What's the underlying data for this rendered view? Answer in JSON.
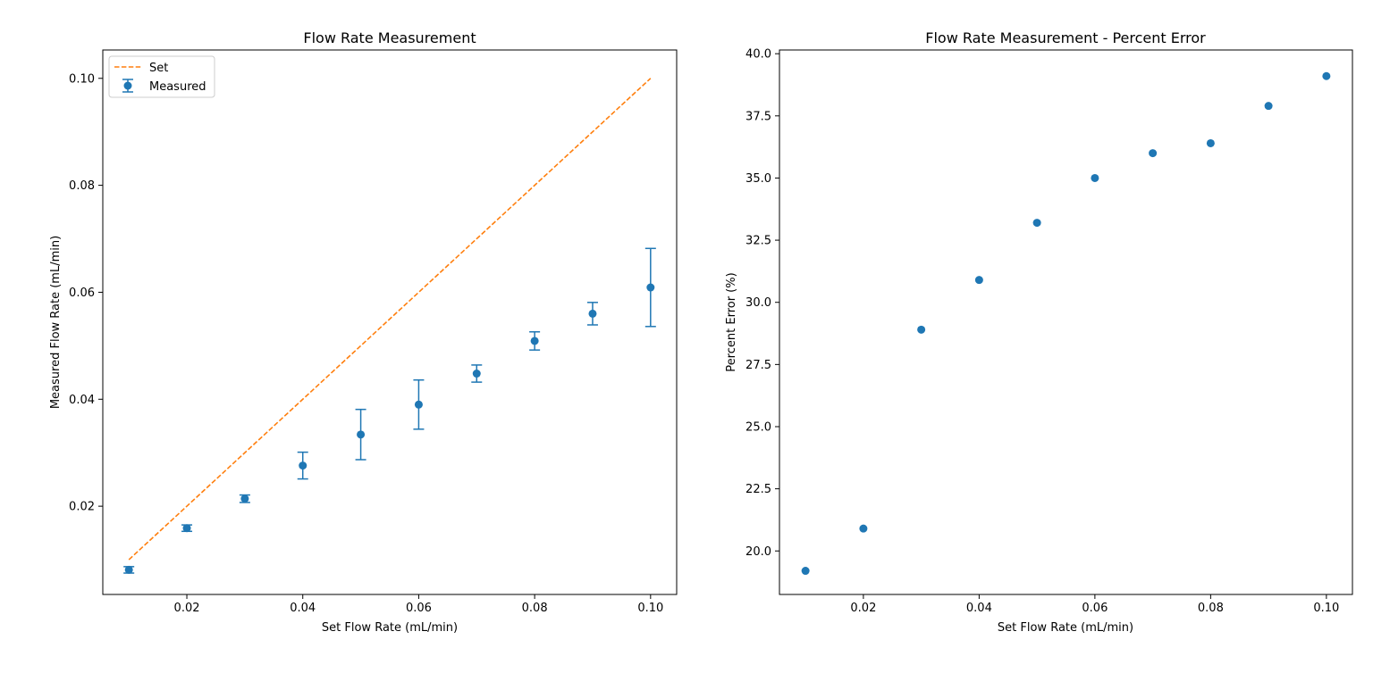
{
  "colors": {
    "measured": "#1f77b4",
    "set": "#ff7f0e"
  },
  "chart_data": [
    {
      "type": "scatter",
      "title": "Flow Rate Measurement",
      "xlabel": "Set Flow Rate (mL/min)",
      "ylabel": "Measured Flow Rate (mL/min)",
      "xlim": [
        0.0055,
        0.1045
      ],
      "ylim": [
        0.0035,
        0.1053
      ],
      "xticks": [
        0.02,
        0.04,
        0.06,
        0.08,
        0.1
      ],
      "xtick_labels": [
        "0.02",
        "0.04",
        "0.06",
        "0.08",
        "0.10"
      ],
      "yticks": [
        0.02,
        0.04,
        0.06,
        0.08,
        0.1
      ],
      "ytick_labels": [
        "0.02",
        "0.04",
        "0.06",
        "0.08",
        "0.10"
      ],
      "grid": false,
      "legend_position": "top-left",
      "series": [
        {
          "name": "Set",
          "kind": "dashed-line",
          "x": [
            0.01,
            0.1
          ],
          "y": [
            0.01,
            0.1
          ]
        },
        {
          "name": "Measured",
          "kind": "errorbar",
          "x": [
            0.01,
            0.02,
            0.03,
            0.04,
            0.05,
            0.06,
            0.07,
            0.08,
            0.09,
            0.1
          ],
          "y": [
            0.0081,
            0.0159,
            0.0214,
            0.0276,
            0.0334,
            0.039,
            0.0448,
            0.0509,
            0.056,
            0.0609
          ],
          "yerr": [
            0.0006,
            0.0006,
            0.0007,
            0.0025,
            0.0047,
            0.0046,
            0.0016,
            0.0017,
            0.0021,
            0.0073
          ]
        }
      ]
    },
    {
      "type": "scatter",
      "title": "Flow Rate Measurement - Percent Error",
      "xlabel": "Set Flow Rate (mL/min)",
      "ylabel": "Percent Error (%)",
      "xlim": [
        0.0055,
        0.1045
      ],
      "ylim": [
        18.25,
        40.15
      ],
      "xticks": [
        0.02,
        0.04,
        0.06,
        0.08,
        0.1
      ],
      "xtick_labels": [
        "0.02",
        "0.04",
        "0.06",
        "0.08",
        "0.10"
      ],
      "yticks": [
        20.0,
        22.5,
        25.0,
        27.5,
        30.0,
        32.5,
        35.0,
        37.5,
        40.0
      ],
      "ytick_labels": [
        "20.0",
        "22.5",
        "25.0",
        "27.5",
        "30.0",
        "32.5",
        "35.0",
        "37.5",
        "40.0"
      ],
      "grid": false,
      "series": [
        {
          "kind": "points",
          "x": [
            0.01,
            0.02,
            0.03,
            0.04,
            0.05,
            0.06,
            0.07,
            0.08,
            0.09,
            0.1
          ],
          "y": [
            19.2,
            20.9,
            28.9,
            30.9,
            33.2,
            35.0,
            36.0,
            36.4,
            37.9,
            39.1
          ]
        }
      ]
    }
  ]
}
